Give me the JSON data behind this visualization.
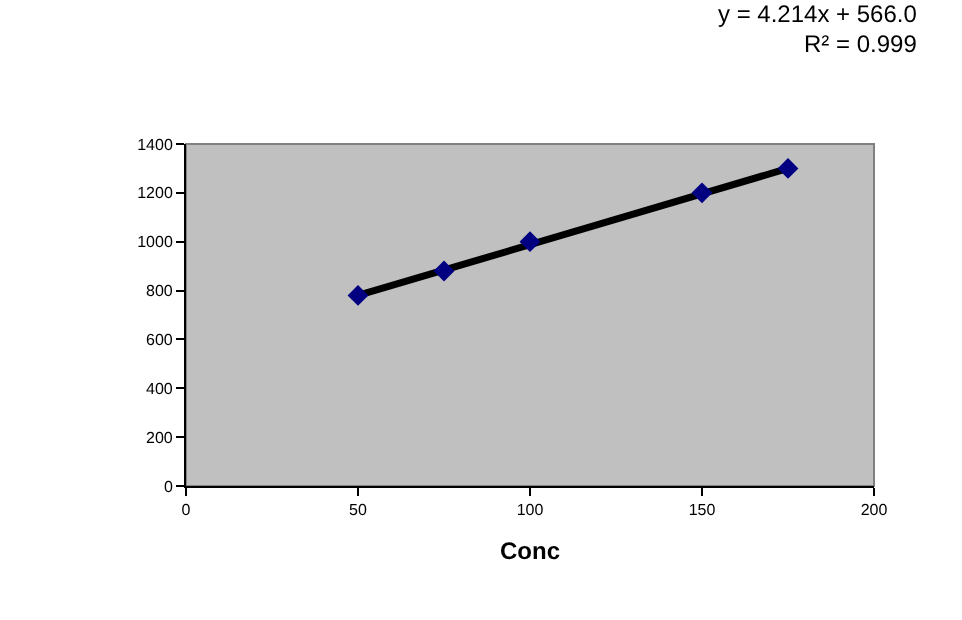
{
  "chart_data": {
    "type": "scatter",
    "xlabel": "Conc",
    "series": [
      {
        "color": "#000080",
        "marker": "diamond",
        "x": [
          50,
          75,
          100,
          150,
          175
        ],
        "values": [
          780,
          880,
          1000,
          1200,
          1300
        ]
      },
      {
        "type": "line",
        "color": "#000000",
        "marker": "none",
        "line_style": "solid",
        "x": [
          50,
          175
        ],
        "values": [
          780,
          1300
        ]
      }
    ],
    "xlim": [
      0,
      200
    ],
    "xticks": [
      0,
      50,
      100,
      150,
      200
    ],
    "ylim": [
      0,
      1400
    ],
    "yticks": [
      0,
      200,
      400,
      600,
      800,
      1000,
      1200,
      1400
    ],
    "grid": false,
    "annotations": [
      "y = 4.214x + 566.0",
      "R² = 0.999"
    ]
  }
}
